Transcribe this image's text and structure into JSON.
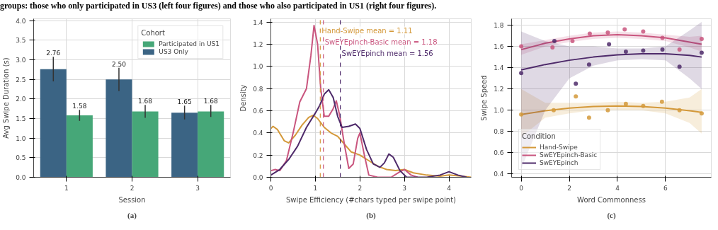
{
  "chart_data": [
    {
      "type": "bar",
      "annotations": [
        "groups: those who only participated in US3 (left four figures) and those who also participated in US1 (right four figures).",
        "(a)"
      ],
      "xlabel": "Session",
      "ylabel": "Avg Swipe Duration (s)",
      "legend_title": "Cohort",
      "legend": "top right",
      "grid": true,
      "categories": [
        "1",
        "2",
        "3"
      ],
      "ylim": [
        0,
        4.05
      ],
      "yticks": [
        {
          "value": 0,
          "label": "0.0"
        },
        {
          "value": 0.5,
          "label": "0.5"
        },
        {
          "value": 1,
          "label": "1.0"
        },
        {
          "value": 1.5,
          "label": "1.5"
        },
        {
          "value": 2,
          "label": "2.0"
        },
        {
          "value": 2.5,
          "label": "2.5"
        },
        {
          "value": 3,
          "label": "3.0"
        },
        {
          "value": 3.5,
          "label": "3.5"
        },
        {
          "value": 4,
          "label": "4.0"
        }
      ],
      "series": [
        {
          "name": "US3 Only",
          "color": "#3b6484",
          "values": [
            2.76,
            2.5,
            1.65
          ],
          "value_labels": [
            "2.76",
            "2.50",
            "1.65"
          ],
          "errors": [
            [
              2.45,
              3.08
            ],
            [
              2.2,
              2.8
            ],
            [
              1.48,
              1.83
            ]
          ]
        },
        {
          "name": "Participated in US1",
          "color": "#46a778",
          "values": [
            1.58,
            1.68,
            1.68
          ],
          "value_labels": [
            "1.58",
            "1.68",
            "1.68"
          ],
          "errors": [
            [
              1.44,
              1.72
            ],
            [
              1.52,
              1.85
            ],
            [
              1.54,
              1.85
            ]
          ]
        }
      ]
    },
    {
      "type": "line",
      "annotations": [
        "(b)"
      ],
      "xlabel": "Swipe Efficiency (#chars typed per swipe point)",
      "ylabel": "Density",
      "grid": true,
      "xlim": [
        0,
        4.5
      ],
      "xticks": [
        0,
        1,
        2,
        3,
        4
      ],
      "ylim": [
        0,
        1.43
      ],
      "yticks": [
        {
          "value": 0,
          "label": "0.0"
        },
        {
          "value": 0.2,
          "label": "0.2"
        },
        {
          "value": 0.4,
          "label": "0.4"
        },
        {
          "value": 0.6,
          "label": "0.6"
        },
        {
          "value": 0.8,
          "label": "0.8"
        },
        {
          "value": 1,
          "label": "1.0"
        },
        {
          "value": 1.2,
          "label": "1.2"
        },
        {
          "value": 1.4,
          "label": "1.4"
        }
      ],
      "ref_lines": [
        {
          "axis": "x",
          "value": 1.11,
          "label": "Hand-Swipe mean = 1.11",
          "color": "#d4993a",
          "line_style": "dashed"
        },
        {
          "axis": "x",
          "value": 1.18,
          "label": "SwEYEpinch-Basic mean = 1.18",
          "color": "#c9557e",
          "line_style": "dashed"
        },
        {
          "axis": "x",
          "value": 1.56,
          "label": "SwEYEpinch mean = 1.56",
          "color": "#4e2a6a",
          "line_style": "dashed"
        }
      ],
      "series": [
        {
          "color": "#d4993a",
          "x": [
            0,
            0.05,
            0.15,
            0.3,
            0.4,
            0.55,
            0.7,
            0.85,
            0.95,
            1.05,
            1.2,
            1.35,
            1.5,
            1.65,
            1.8,
            2.0,
            2.2,
            2.4,
            2.6,
            2.8,
            3.0,
            3.2,
            3.5,
            3.8,
            4.0,
            4.3,
            4.5
          ],
          "values": [
            0.44,
            0.46,
            0.43,
            0.33,
            0.31,
            0.38,
            0.47,
            0.54,
            0.56,
            0.53,
            0.45,
            0.4,
            0.37,
            0.3,
            0.23,
            0.2,
            0.15,
            0.1,
            0.07,
            0.06,
            0.07,
            0.04,
            0.02,
            0.01,
            0.02,
            0.01,
            0.0
          ]
        },
        {
          "color": "#c9557e",
          "x": [
            0,
            0.1,
            0.2,
            0.35,
            0.5,
            0.65,
            0.8,
            0.9,
            0.97,
            1.05,
            1.12,
            1.2,
            1.3,
            1.4,
            1.47,
            1.55,
            1.65,
            1.75,
            1.85,
            1.95,
            2.0,
            2.1,
            2.2,
            2.4,
            2.7,
            2.9,
            3.0,
            3.15,
            3.3
          ],
          "values": [
            0.06,
            0.07,
            0.06,
            0.15,
            0.4,
            0.68,
            0.8,
            1.1,
            1.37,
            1.2,
            0.8,
            0.55,
            0.55,
            0.62,
            0.69,
            0.55,
            0.3,
            0.08,
            0.12,
            0.35,
            0.4,
            0.2,
            0.02,
            0.0,
            0.0,
            0.05,
            0.07,
            0.02,
            0.0
          ]
        },
        {
          "color": "#4e2a6a",
          "x": [
            0,
            0.2,
            0.4,
            0.6,
            0.8,
            1.0,
            1.1,
            1.2,
            1.3,
            1.4,
            1.5,
            1.6,
            1.75,
            1.9,
            2.0,
            2.15,
            2.3,
            2.45,
            2.55,
            2.65,
            2.75,
            2.9,
            3.05,
            3.5,
            3.8,
            4.0,
            4.2,
            4.4
          ],
          "values": [
            0.02,
            0.07,
            0.16,
            0.28,
            0.45,
            0.58,
            0.65,
            0.75,
            0.79,
            0.72,
            0.55,
            0.45,
            0.46,
            0.48,
            0.44,
            0.25,
            0.12,
            0.09,
            0.13,
            0.21,
            0.18,
            0.06,
            0.0,
            0.0,
            0.02,
            0.05,
            0.02,
            0.0
          ]
        }
      ]
    },
    {
      "type": "line",
      "annotations": [
        "(c)"
      ],
      "xlabel": "Word Commonness",
      "ylabel": "Swipe Speed",
      "legend_title": "Condition",
      "legend": "bottom left",
      "grid": true,
      "xlim": [
        -0.4,
        7.9
      ],
      "xticks": [
        0,
        2,
        4,
        6
      ],
      "ylim": [
        0.37,
        1.86
      ],
      "yticks": [
        0.4,
        0.6,
        0.8,
        {
          "value": 1,
          "label": "1.0"
        },
        1.2,
        1.4,
        1.6,
        1.8
      ],
      "series": [
        {
          "type": "line",
          "name": "Hand-Swipe",
          "color": "#d4993a",
          "x": [
            0,
            1,
            2,
            3,
            4,
            5,
            6,
            7,
            7.5
          ],
          "values": [
            0.96,
            0.995,
            1.02,
            1.035,
            1.04,
            1.035,
            1.02,
            0.995,
            0.98
          ],
          "lower": [
            0.75,
            0.93,
            0.97,
            1.0,
            1.0,
            1.0,
            0.97,
            0.88,
            0.78
          ],
          "upper": [
            1.2,
            1.07,
            1.07,
            1.07,
            1.08,
            1.07,
            1.08,
            1.12,
            1.2
          ]
        },
        {
          "type": "line",
          "name": "SwEYEpinch-Basic",
          "color": "#c9557e",
          "x": [
            0,
            1,
            2,
            3,
            4,
            5,
            6,
            7,
            7.5
          ],
          "values": [
            1.57,
            1.63,
            1.67,
            1.7,
            1.71,
            1.7,
            1.68,
            1.64,
            1.62
          ],
          "lower": [
            1.52,
            1.6,
            1.64,
            1.67,
            1.68,
            1.67,
            1.65,
            1.59,
            1.55
          ],
          "upper": [
            1.62,
            1.66,
            1.7,
            1.73,
            1.74,
            1.73,
            1.71,
            1.69,
            1.7
          ]
        },
        {
          "type": "line",
          "name": "SwEYEpinch",
          "color": "#4e2a6a",
          "x": [
            0,
            1,
            2,
            3,
            4,
            5,
            6,
            7,
            7.5
          ],
          "values": [
            1.38,
            1.43,
            1.47,
            1.5,
            1.52,
            1.53,
            1.53,
            1.515,
            1.5
          ],
          "lower": [
            0.45,
            1.0,
            1.3,
            1.42,
            1.47,
            1.48,
            1.47,
            1.3,
            1.2
          ],
          "upper": [
            1.74,
            1.65,
            1.6,
            1.6,
            1.58,
            1.58,
            1.6,
            1.75,
            1.83
          ]
        },
        {
          "type": "scatter",
          "color": "#d4993a",
          "marker": "circle",
          "x": [
            0,
            1.35,
            2.27,
            2.82,
            3.6,
            4.35,
            5.07,
            5.85,
            6.58,
            7.5
          ],
          "values": [
            0.96,
            1.0,
            1.13,
            0.93,
            1.0,
            1.06,
            1.04,
            1.08,
            1.0,
            0.97
          ]
        },
        {
          "type": "scatter",
          "color": "#c9557e",
          "marker": "circle",
          "x": [
            0,
            1.3,
            2.13,
            2.85,
            3.6,
            4.3,
            5.07,
            5.87,
            6.58,
            7.5
          ],
          "values": [
            1.6,
            1.59,
            1.65,
            1.72,
            1.73,
            1.76,
            1.74,
            1.68,
            1.57,
            1.67
          ]
        },
        {
          "type": "scatter",
          "color": "#4e2a6a",
          "marker": "circle",
          "x": [
            0,
            1.38,
            2.27,
            2.82,
            3.65,
            4.35,
            5.07,
            5.87,
            6.58,
            7.5
          ],
          "values": [
            1.35,
            1.65,
            1.25,
            1.43,
            1.62,
            1.55,
            1.56,
            1.57,
            1.41,
            1.54
          ]
        }
      ]
    }
  ]
}
